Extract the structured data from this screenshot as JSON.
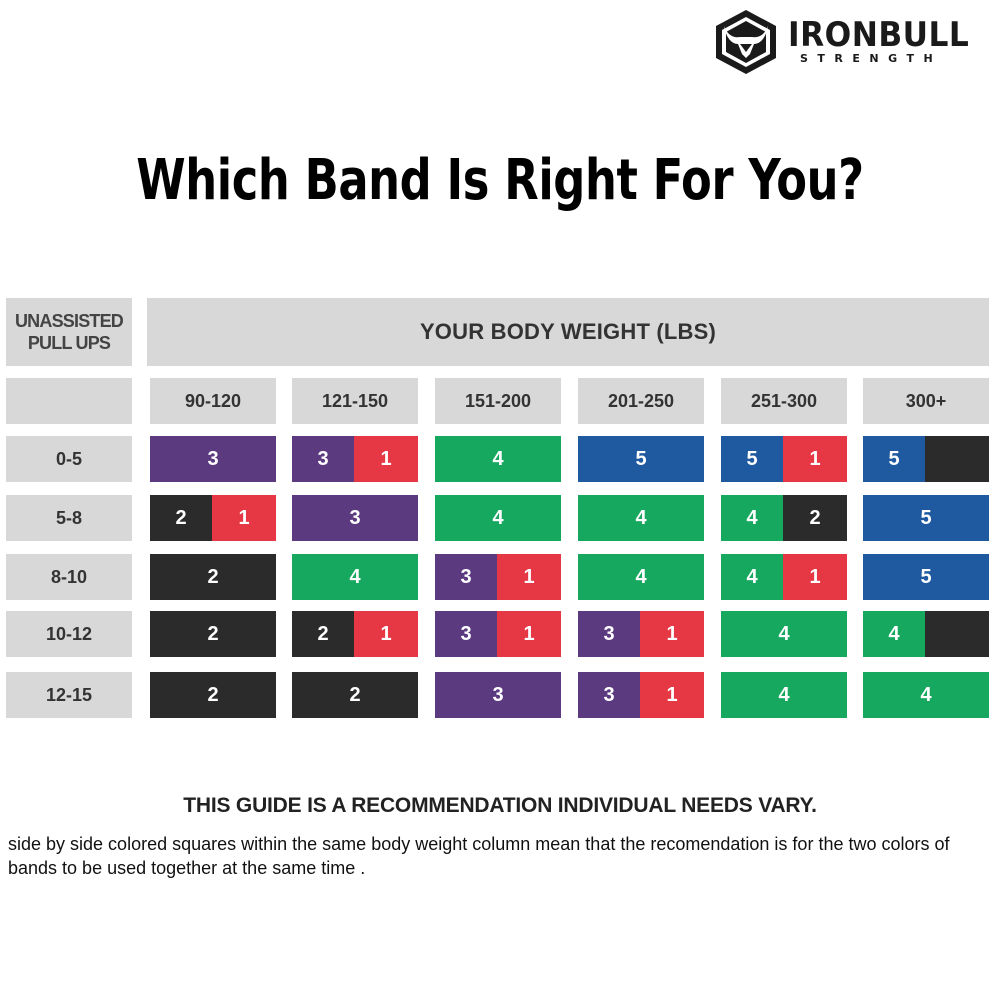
{
  "brand": {
    "name": "IRONBULL",
    "tagline": "STRENGTH"
  },
  "title": "Which Band Is Right For You?",
  "table": {
    "corner_label_line1": "UNASSISTED",
    "corner_label_line2": "PULL UPS",
    "header": "YOUR BODY WEIGHT (LBS)",
    "columns": [
      "90-120",
      "121-150",
      "151-200",
      "201-250",
      "251-300",
      "300+"
    ],
    "rows": [
      {
        "label": "0-5",
        "cells": [
          [
            {
              "band": "3",
              "color": "purple"
            }
          ],
          [
            {
              "band": "3",
              "color": "purple"
            },
            {
              "band": "1",
              "color": "red"
            }
          ],
          [
            {
              "band": "4",
              "color": "green"
            }
          ],
          [
            {
              "band": "5",
              "color": "blue"
            }
          ],
          [
            {
              "band": "5",
              "color": "blue"
            },
            {
              "band": "1",
              "color": "red"
            }
          ],
          [
            {
              "band": "5",
              "color": "blue"
            },
            {
              "band": "",
              "color": "black"
            }
          ]
        ]
      },
      {
        "label": "5-8",
        "cells": [
          [
            {
              "band": "2",
              "color": "black"
            },
            {
              "band": "1",
              "color": "red"
            }
          ],
          [
            {
              "band": "3",
              "color": "purple"
            }
          ],
          [
            {
              "band": "4",
              "color": "green"
            }
          ],
          [
            {
              "band": "4",
              "color": "green"
            }
          ],
          [
            {
              "band": "4",
              "color": "green"
            },
            {
              "band": "2",
              "color": "black"
            }
          ],
          [
            {
              "band": "5",
              "color": "blue"
            }
          ]
        ]
      },
      {
        "label": "8-10",
        "cells": [
          [
            {
              "band": "2",
              "color": "black"
            }
          ],
          [
            {
              "band": "4",
              "color": "green"
            }
          ],
          [
            {
              "band": "3",
              "color": "purple"
            },
            {
              "band": "1",
              "color": "red"
            }
          ],
          [
            {
              "band": "4",
              "color": "green"
            }
          ],
          [
            {
              "band": "4",
              "color": "green"
            },
            {
              "band": "1",
              "color": "red"
            }
          ],
          [
            {
              "band": "5",
              "color": "blue"
            }
          ]
        ]
      },
      {
        "label": "10-12",
        "cells": [
          [
            {
              "band": "2",
              "color": "black"
            }
          ],
          [
            {
              "band": "2",
              "color": "black"
            },
            {
              "band": "1",
              "color": "red"
            }
          ],
          [
            {
              "band": "3",
              "color": "purple"
            },
            {
              "band": "1",
              "color": "red"
            }
          ],
          [
            {
              "band": "3",
              "color": "purple"
            },
            {
              "band": "1",
              "color": "red"
            }
          ],
          [
            {
              "band": "4",
              "color": "green"
            }
          ],
          [
            {
              "band": "4",
              "color": "green"
            },
            {
              "band": "",
              "color": "black"
            }
          ]
        ]
      },
      {
        "label": "12-15",
        "cells": [
          [
            {
              "band": "2",
              "color": "black"
            }
          ],
          [
            {
              "band": "2",
              "color": "black"
            }
          ],
          [
            {
              "band": "3",
              "color": "purple"
            }
          ],
          [
            {
              "band": "3",
              "color": "purple"
            },
            {
              "band": "1",
              "color": "red"
            }
          ],
          [
            {
              "band": "4",
              "color": "green"
            }
          ],
          [
            {
              "band": "4",
              "color": "green"
            }
          ]
        ]
      }
    ]
  },
  "colors": {
    "purple": "#5c3a80",
    "red": "#e63744",
    "green": "#17a85f",
    "blue": "#1f5aa0",
    "black": "#2b2b2b",
    "header_gray": "#d8d8d8"
  },
  "notes": {
    "disclaimer": "THIS GUIDE IS A RECOMMENDATION  INDIVIDUAL NEEDS VARY.",
    "explanation": "side by side colored squares within the same body  weight column mean that the recomendation is for the two colors of  bands to be used together at the same time ."
  }
}
